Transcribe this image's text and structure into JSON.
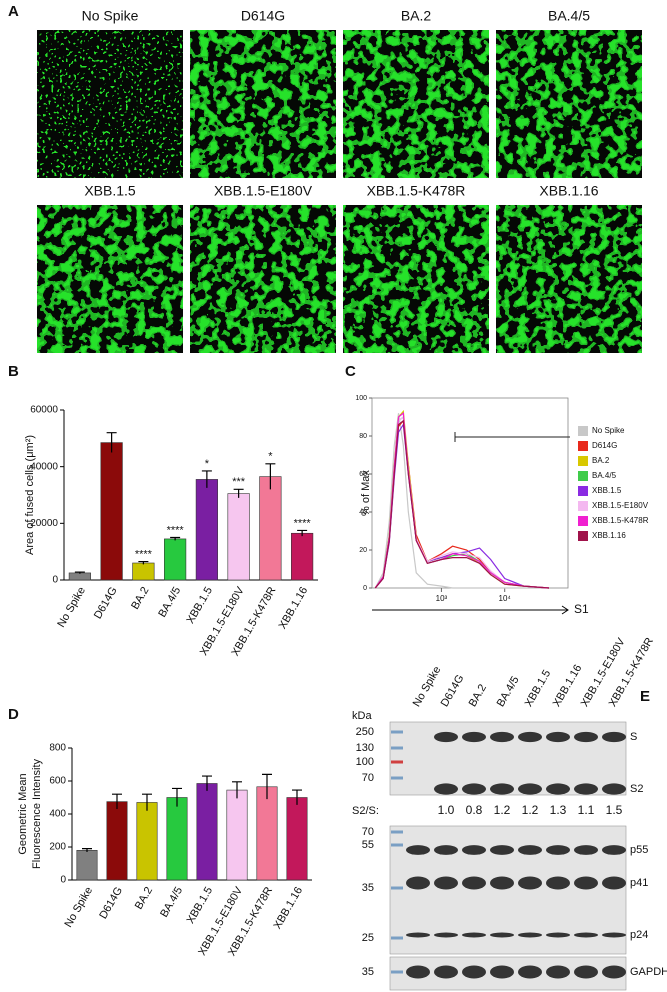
{
  "images": {
    "panel": "A",
    "titles": [
      "No Spike",
      "D614G",
      "BA.2",
      "BA.4/5",
      "XBB.1.5",
      "XBB.1.5-E180V",
      "XBB.1.5-K478R",
      "XBB.1.16"
    ]
  },
  "chart_data": [
    {
      "type": "bar",
      "panel": "B",
      "y_label": [
        "Area of fused cells (μm²)"
      ],
      "categories": [
        "No Spike",
        "D614G",
        "BA.2",
        "BA.4/5",
        "XBB.1.5",
        "XBB.1.5-E180V",
        "XBB.1.5-K478R",
        "XBB.1.16"
      ],
      "values": [
        2500,
        48500,
        6000,
        14500,
        35500,
        30500,
        36500,
        16500
      ],
      "errors": [
        300,
        3500,
        500,
        500,
        3000,
        1500,
        4500,
        1000
      ],
      "significance": [
        null,
        null,
        "****",
        "****",
        "*",
        "***",
        "*",
        "****"
      ],
      "colors": [
        "#808080",
        "#8b0a0a",
        "#c9c400",
        "#27c93f",
        "#7a1fa2",
        "#f6c6ef",
        "#f27896",
        "#c2185b"
      ],
      "ylim": [
        0,
        60000
      ],
      "yticks": [
        0,
        20000,
        40000,
        60000
      ]
    },
    {
      "type": "line",
      "panel": "C",
      "y_label": [
        "% of Max"
      ],
      "x_label": "S1",
      "x_scale": "log",
      "x": [
        90,
        120,
        150,
        180,
        210,
        250,
        300,
        400,
        600,
        1000,
        1500,
        2500,
        4000,
        6000,
        10000,
        20000,
        50000
      ],
      "xlim": [
        80,
        100000
      ],
      "xticks": [
        {
          "value": 1000,
          "label": "10³"
        },
        {
          "value": 10000,
          "label": "10⁴"
        }
      ],
      "ylim": [
        0,
        100
      ],
      "yticks": [
        0,
        20,
        40,
        60,
        80,
        100
      ],
      "series": [
        {
          "name": "No Spike",
          "color": "#c8c8c8",
          "values": [
            0,
            8,
            35,
            75,
            92,
            75,
            40,
            8,
            2,
            1,
            0,
            0,
            0,
            0,
            0,
            0,
            0
          ]
        },
        {
          "name": "D614G",
          "color": "#e8291c",
          "values": [
            0,
            5,
            25,
            60,
            85,
            88,
            65,
            28,
            14,
            18,
            22,
            20,
            15,
            8,
            3,
            1,
            0
          ]
        },
        {
          "name": "BA.2",
          "color": "#d8c800",
          "values": [
            0,
            6,
            28,
            65,
            90,
            93,
            65,
            26,
            14,
            16,
            18,
            17,
            13,
            7,
            2,
            1,
            0
          ]
        },
        {
          "name": "BA.4/5",
          "color": "#3fcc4a",
          "values": [
            0,
            6,
            27,
            63,
            88,
            90,
            62,
            25,
            13,
            15,
            17,
            18,
            14,
            8,
            3,
            1,
            0
          ]
        },
        {
          "name": "XBB.1.5",
          "color": "#8a2be2",
          "values": [
            0,
            5,
            24,
            58,
            82,
            86,
            60,
            25,
            14,
            16,
            18,
            19,
            21,
            15,
            5,
            1,
            0
          ]
        },
        {
          "name": "XBB.1.5-E180V",
          "color": "#f4b8f0",
          "values": [
            0,
            6,
            26,
            62,
            88,
            90,
            62,
            26,
            14,
            17,
            19,
            18,
            16,
            9,
            3,
            1,
            0
          ]
        },
        {
          "name": "XBB.1.5-K478R",
          "color": "#f020d0",
          "values": [
            0,
            6,
            27,
            64,
            90,
            92,
            62,
            25,
            13,
            15,
            18,
            17,
            14,
            8,
            3,
            1,
            0
          ]
        },
        {
          "name": "XBB.1.16",
          "color": "#a0124a",
          "values": [
            0,
            5,
            25,
            60,
            86,
            88,
            60,
            25,
            13,
            15,
            16,
            16,
            13,
            7,
            2,
            1,
            0
          ]
        }
      ]
    },
    {
      "type": "bar",
      "panel": "D",
      "y_label": [
        "Geometric Mean",
        "Fluorescence Intensity"
      ],
      "categories": [
        "No Spike",
        "D614G",
        "BA.2",
        "BA.4/5",
        "XBB.1.5",
        "XBB.1.5-E180V",
        "XBB.1.5-K478R",
        "XBB.1.16"
      ],
      "values": [
        180,
        475,
        470,
        500,
        585,
        545,
        565,
        500
      ],
      "errors": [
        10,
        45,
        50,
        55,
        45,
        50,
        75,
        45
      ],
      "colors": [
        "#808080",
        "#8b0a0a",
        "#c9c400",
        "#27c93f",
        "#7a1fa2",
        "#f6c6ef",
        "#f27896",
        "#c2185b"
      ],
      "ylim": [
        0,
        800
      ],
      "yticks": [
        0,
        200,
        400,
        600,
        800
      ]
    }
  ],
  "blot": {
    "panel": "E",
    "unit": "kDa",
    "lanes": [
      "No Spike",
      "D614G",
      "BA.2",
      "BA.4/5",
      "XBB.1.5",
      "XBB.1.16",
      "XBB.1.5-E180V",
      "XBB.1.5-K478R"
    ],
    "ratio_label": "S2/S:",
    "ratios": [
      "1.0",
      "0.8",
      "1.2",
      "1.2",
      "1.3",
      "1.1",
      "1.5"
    ],
    "panels": [
      {
        "markers": [
          250,
          130,
          100,
          70
        ],
        "bands": [
          "S",
          "S2"
        ]
      },
      {
        "markers": [
          70,
          55,
          35,
          25
        ],
        "bands": [
          "p55",
          "p41",
          "p24"
        ]
      },
      {
        "markers": [
          35
        ],
        "bands": [
          "GAPDH"
        ]
      }
    ]
  }
}
